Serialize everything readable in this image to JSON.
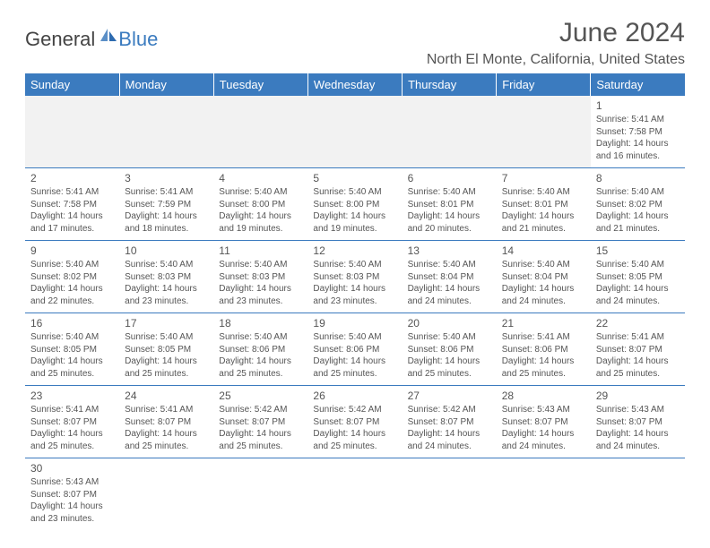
{
  "logo": {
    "general": "General",
    "blue": "Blue"
  },
  "title": "June 2024",
  "location": "North El Monte, California, United States",
  "colors": {
    "header_bg": "#3b7bbf",
    "header_text": "#ffffff",
    "border": "#3b7bbf",
    "text": "#555555",
    "empty_bg": "#f2f2f2"
  },
  "weekdays": [
    "Sunday",
    "Monday",
    "Tuesday",
    "Wednesday",
    "Thursday",
    "Friday",
    "Saturday"
  ],
  "weeks": [
    [
      null,
      null,
      null,
      null,
      null,
      null,
      {
        "day": "1",
        "sunrise": "Sunrise: 5:41 AM",
        "sunset": "Sunset: 7:58 PM",
        "daylight": "Daylight: 14 hours and 16 minutes."
      }
    ],
    [
      {
        "day": "2",
        "sunrise": "Sunrise: 5:41 AM",
        "sunset": "Sunset: 7:58 PM",
        "daylight": "Daylight: 14 hours and 17 minutes."
      },
      {
        "day": "3",
        "sunrise": "Sunrise: 5:41 AM",
        "sunset": "Sunset: 7:59 PM",
        "daylight": "Daylight: 14 hours and 18 minutes."
      },
      {
        "day": "4",
        "sunrise": "Sunrise: 5:40 AM",
        "sunset": "Sunset: 8:00 PM",
        "daylight": "Daylight: 14 hours and 19 minutes."
      },
      {
        "day": "5",
        "sunrise": "Sunrise: 5:40 AM",
        "sunset": "Sunset: 8:00 PM",
        "daylight": "Daylight: 14 hours and 19 minutes."
      },
      {
        "day": "6",
        "sunrise": "Sunrise: 5:40 AM",
        "sunset": "Sunset: 8:01 PM",
        "daylight": "Daylight: 14 hours and 20 minutes."
      },
      {
        "day": "7",
        "sunrise": "Sunrise: 5:40 AM",
        "sunset": "Sunset: 8:01 PM",
        "daylight": "Daylight: 14 hours and 21 minutes."
      },
      {
        "day": "8",
        "sunrise": "Sunrise: 5:40 AM",
        "sunset": "Sunset: 8:02 PM",
        "daylight": "Daylight: 14 hours and 21 minutes."
      }
    ],
    [
      {
        "day": "9",
        "sunrise": "Sunrise: 5:40 AM",
        "sunset": "Sunset: 8:02 PM",
        "daylight": "Daylight: 14 hours and 22 minutes."
      },
      {
        "day": "10",
        "sunrise": "Sunrise: 5:40 AM",
        "sunset": "Sunset: 8:03 PM",
        "daylight": "Daylight: 14 hours and 23 minutes."
      },
      {
        "day": "11",
        "sunrise": "Sunrise: 5:40 AM",
        "sunset": "Sunset: 8:03 PM",
        "daylight": "Daylight: 14 hours and 23 minutes."
      },
      {
        "day": "12",
        "sunrise": "Sunrise: 5:40 AM",
        "sunset": "Sunset: 8:03 PM",
        "daylight": "Daylight: 14 hours and 23 minutes."
      },
      {
        "day": "13",
        "sunrise": "Sunrise: 5:40 AM",
        "sunset": "Sunset: 8:04 PM",
        "daylight": "Daylight: 14 hours and 24 minutes."
      },
      {
        "day": "14",
        "sunrise": "Sunrise: 5:40 AM",
        "sunset": "Sunset: 8:04 PM",
        "daylight": "Daylight: 14 hours and 24 minutes."
      },
      {
        "day": "15",
        "sunrise": "Sunrise: 5:40 AM",
        "sunset": "Sunset: 8:05 PM",
        "daylight": "Daylight: 14 hours and 24 minutes."
      }
    ],
    [
      {
        "day": "16",
        "sunrise": "Sunrise: 5:40 AM",
        "sunset": "Sunset: 8:05 PM",
        "daylight": "Daylight: 14 hours and 25 minutes."
      },
      {
        "day": "17",
        "sunrise": "Sunrise: 5:40 AM",
        "sunset": "Sunset: 8:05 PM",
        "daylight": "Daylight: 14 hours and 25 minutes."
      },
      {
        "day": "18",
        "sunrise": "Sunrise: 5:40 AM",
        "sunset": "Sunset: 8:06 PM",
        "daylight": "Daylight: 14 hours and 25 minutes."
      },
      {
        "day": "19",
        "sunrise": "Sunrise: 5:40 AM",
        "sunset": "Sunset: 8:06 PM",
        "daylight": "Daylight: 14 hours and 25 minutes."
      },
      {
        "day": "20",
        "sunrise": "Sunrise: 5:40 AM",
        "sunset": "Sunset: 8:06 PM",
        "daylight": "Daylight: 14 hours and 25 minutes."
      },
      {
        "day": "21",
        "sunrise": "Sunrise: 5:41 AM",
        "sunset": "Sunset: 8:06 PM",
        "daylight": "Daylight: 14 hours and 25 minutes."
      },
      {
        "day": "22",
        "sunrise": "Sunrise: 5:41 AM",
        "sunset": "Sunset: 8:07 PM",
        "daylight": "Daylight: 14 hours and 25 minutes."
      }
    ],
    [
      {
        "day": "23",
        "sunrise": "Sunrise: 5:41 AM",
        "sunset": "Sunset: 8:07 PM",
        "daylight": "Daylight: 14 hours and 25 minutes."
      },
      {
        "day": "24",
        "sunrise": "Sunrise: 5:41 AM",
        "sunset": "Sunset: 8:07 PM",
        "daylight": "Daylight: 14 hours and 25 minutes."
      },
      {
        "day": "25",
        "sunrise": "Sunrise: 5:42 AM",
        "sunset": "Sunset: 8:07 PM",
        "daylight": "Daylight: 14 hours and 25 minutes."
      },
      {
        "day": "26",
        "sunrise": "Sunrise: 5:42 AM",
        "sunset": "Sunset: 8:07 PM",
        "daylight": "Daylight: 14 hours and 25 minutes."
      },
      {
        "day": "27",
        "sunrise": "Sunrise: 5:42 AM",
        "sunset": "Sunset: 8:07 PM",
        "daylight": "Daylight: 14 hours and 24 minutes."
      },
      {
        "day": "28",
        "sunrise": "Sunrise: 5:43 AM",
        "sunset": "Sunset: 8:07 PM",
        "daylight": "Daylight: 14 hours and 24 minutes."
      },
      {
        "day": "29",
        "sunrise": "Sunrise: 5:43 AM",
        "sunset": "Sunset: 8:07 PM",
        "daylight": "Daylight: 14 hours and 24 minutes."
      }
    ],
    [
      {
        "day": "30",
        "sunrise": "Sunrise: 5:43 AM",
        "sunset": "Sunset: 8:07 PM",
        "daylight": "Daylight: 14 hours and 23 minutes."
      },
      null,
      null,
      null,
      null,
      null,
      null
    ]
  ]
}
